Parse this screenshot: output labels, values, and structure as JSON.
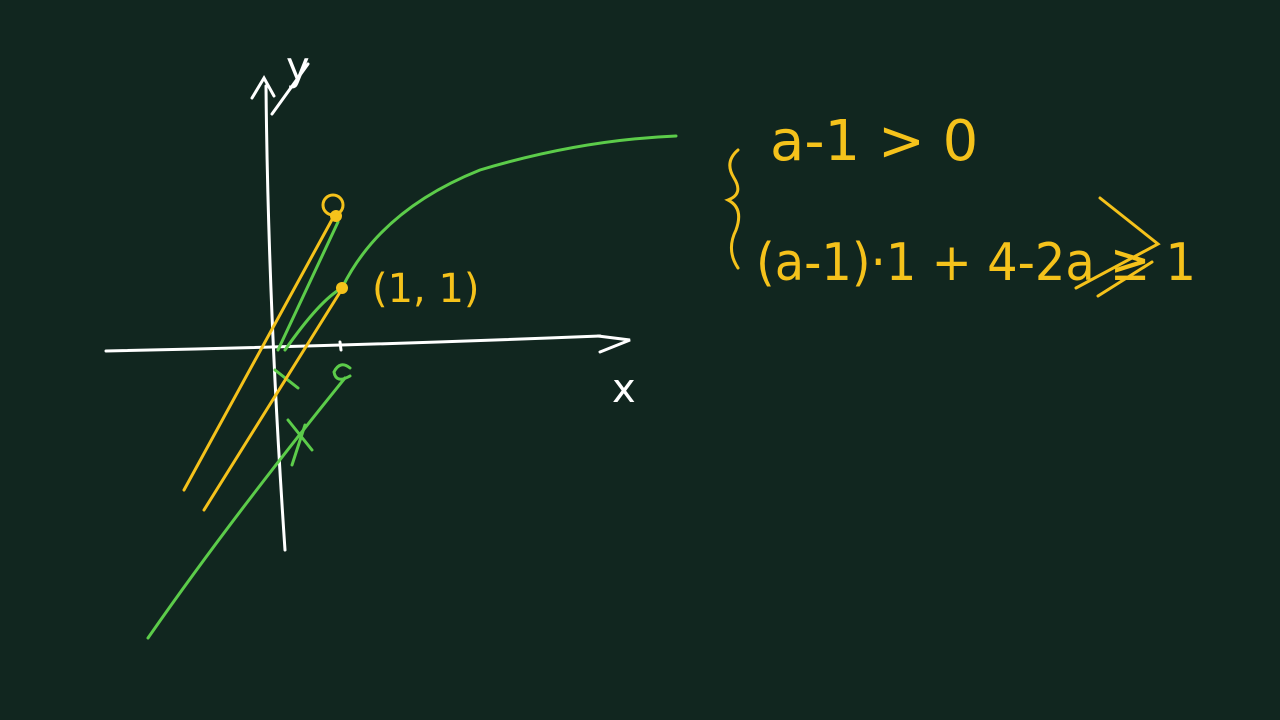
{
  "axes": {
    "y_label": "y",
    "x_label": "x"
  },
  "point_label": "(1, 1)",
  "system": {
    "line_1": "a-1 > 0",
    "line_2": "(a-1)·1 + 4-2a ≥ 1"
  }
}
